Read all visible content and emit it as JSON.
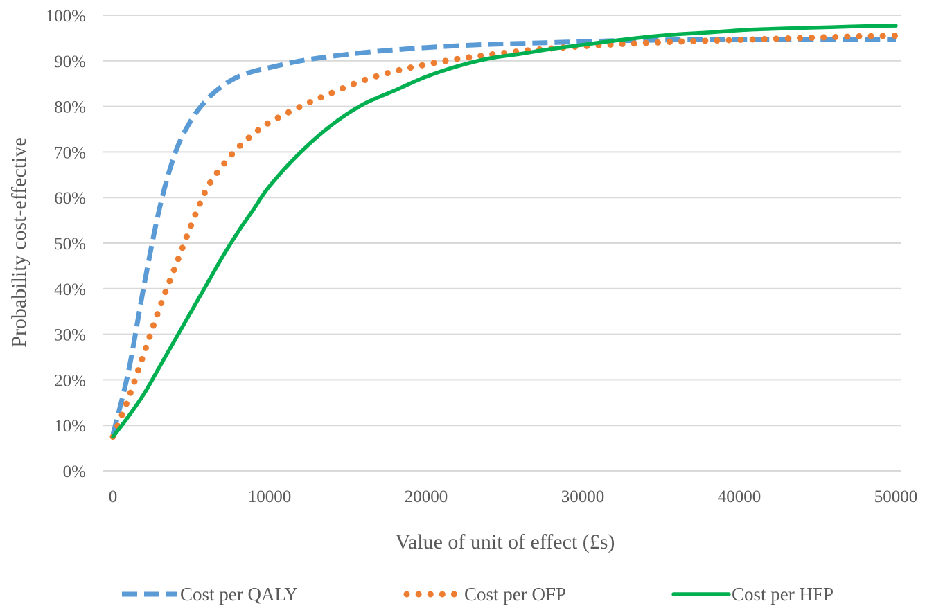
{
  "chart_data": {
    "type": "line",
    "title": "",
    "xlabel": "Value of unit of effect (£s)",
    "ylabel": "Probability cost-effective",
    "xlim": [
      0,
      50000
    ],
    "ylim": [
      0,
      1
    ],
    "x_ticks": [
      0,
      10000,
      20000,
      30000,
      40000,
      50000
    ],
    "x_tick_labels": [
      "0",
      "10000",
      "20000",
      "30000",
      "40000",
      "50000"
    ],
    "y_ticks": [
      0,
      0.1,
      0.2,
      0.3,
      0.4,
      0.5,
      0.6,
      0.7,
      0.8,
      0.9,
      1.0
    ],
    "y_tick_labels": [
      "0%",
      "10%",
      "20%",
      "30%",
      "40%",
      "50%",
      "60%",
      "70%",
      "80%",
      "90%",
      "100%"
    ],
    "grid": "horizontal",
    "legend_position": "bottom",
    "x": [
      0,
      1000,
      2000,
      3000,
      4000,
      5000,
      6000,
      7000,
      8000,
      9000,
      10000,
      12000,
      14000,
      16000,
      18000,
      20000,
      22000,
      24000,
      26000,
      28000,
      30000,
      32000,
      34000,
      36000,
      38000,
      40000,
      42000,
      44000,
      46000,
      48000,
      50000
    ],
    "series": [
      {
        "name": "Cost per QALY",
        "color": "#5B9BD5",
        "style": "dashed",
        "values": [
          0.08,
          0.22,
          0.41,
          0.58,
          0.7,
          0.77,
          0.815,
          0.845,
          0.865,
          0.877,
          0.885,
          0.9,
          0.91,
          0.918,
          0.924,
          0.929,
          0.933,
          0.936,
          0.938,
          0.94,
          0.942,
          0.944,
          0.945,
          0.946,
          0.946,
          0.947,
          0.947,
          0.947,
          0.947,
          0.947,
          0.947
        ]
      },
      {
        "name": "Cost per OFP",
        "color": "#ED7D31",
        "style": "dotted",
        "values": [
          0.075,
          0.16,
          0.26,
          0.36,
          0.45,
          0.54,
          0.62,
          0.67,
          0.71,
          0.74,
          0.765,
          0.8,
          0.83,
          0.857,
          0.877,
          0.892,
          0.904,
          0.913,
          0.921,
          0.927,
          0.932,
          0.936,
          0.939,
          0.942,
          0.944,
          0.946,
          0.948,
          0.95,
          0.952,
          0.954,
          0.955
        ]
      },
      {
        "name": "Cost per HFP",
        "color": "#00B050",
        "style": "solid",
        "values": [
          0.075,
          0.12,
          0.17,
          0.23,
          0.29,
          0.35,
          0.41,
          0.47,
          0.525,
          0.575,
          0.625,
          0.7,
          0.76,
          0.805,
          0.835,
          0.865,
          0.888,
          0.905,
          0.915,
          0.926,
          0.935,
          0.944,
          0.952,
          0.958,
          0.962,
          0.967,
          0.97,
          0.972,
          0.974,
          0.976,
          0.977
        ]
      }
    ]
  }
}
